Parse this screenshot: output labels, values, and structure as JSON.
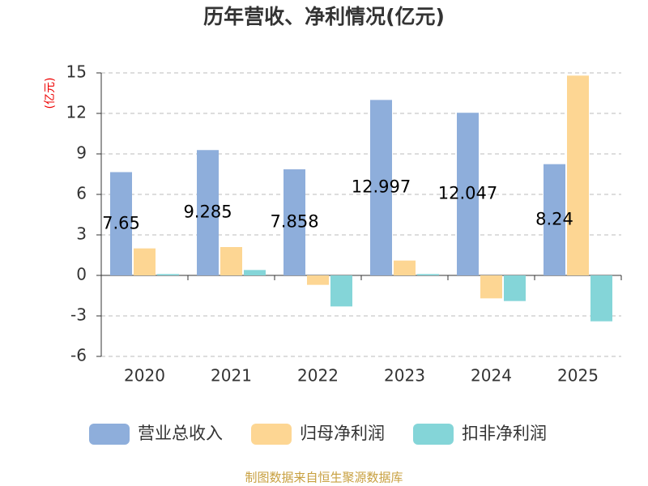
{
  "chart_data": {
    "type": "bar",
    "title": "历年营收、净利情况(亿元)",
    "y_label": "(亿元)",
    "source": "制图数据来自恒生聚源数据库",
    "categories": [
      "2020",
      "2021",
      "2022",
      "2023",
      "2024",
      "2025"
    ],
    "series": [
      {
        "name": "营业总收入",
        "color": "#8eaedb",
        "values": [
          7.65,
          9.285,
          7.858,
          12.997,
          12.047,
          8.24
        ],
        "data_labels": true
      },
      {
        "name": "归母净利润",
        "color": "#fdd693",
        "values": [
          2.0,
          2.1,
          -0.7,
          1.1,
          -1.7,
          14.8
        ]
      },
      {
        "name": "扣非净利润",
        "color": "#84d5d8",
        "values": [
          0.1,
          0.4,
          -2.3,
          0.1,
          -1.9,
          -3.4
        ]
      }
    ],
    "ylim": [
      -6,
      15
    ],
    "yticks": [
      -6,
      -3,
      0,
      3,
      6,
      9,
      12,
      15
    ],
    "grid": true
  }
}
